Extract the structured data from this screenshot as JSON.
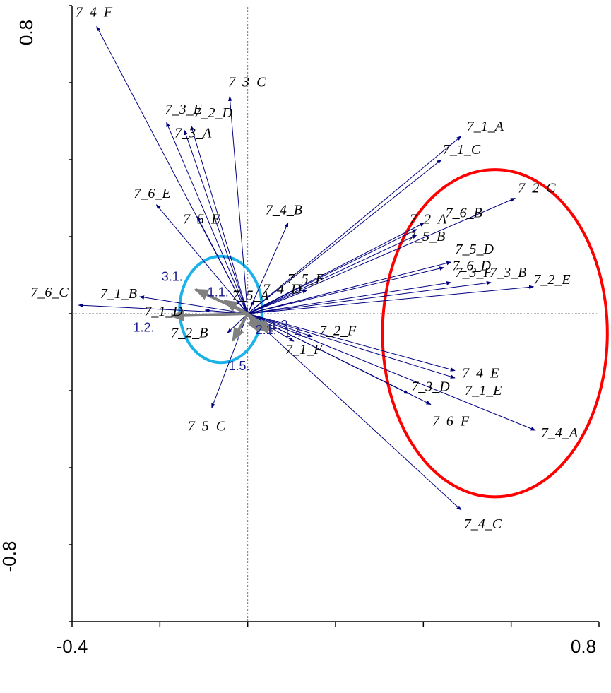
{
  "chart_data": {
    "type": "biplot",
    "title": "",
    "xlabel": "",
    "ylabel": "",
    "xlim": [
      -0.4,
      0.8
    ],
    "ylim": [
      -0.8,
      0.8
    ],
    "x_tick_labels": [
      "-0.4",
      "0.8"
    ],
    "y_tick_labels": [
      "0.8",
      "-0.8"
    ],
    "grid": false,
    "series": [
      {
        "color": "#000080",
        "vectors": [
          {
            "label": "7_4_F",
            "x": -0.344,
            "y": 0.746
          },
          {
            "label": "7_3_C",
            "x": -0.041,
            "y": 0.564
          },
          {
            "label": "7_3_E",
            "x": -0.185,
            "y": 0.497
          },
          {
            "label": "7_2_D",
            "x": -0.129,
            "y": 0.488
          },
          {
            "label": "7_3_A",
            "x": -0.144,
            "y": 0.476
          },
          {
            "label": "7_1_A",
            "x": 0.486,
            "y": 0.461
          },
          {
            "label": "7_1_C",
            "x": 0.441,
            "y": 0.4
          },
          {
            "label": "7_2_C",
            "x": 0.609,
            "y": 0.3
          },
          {
            "label": "7_6_E",
            "x": -0.208,
            "y": 0.283
          },
          {
            "label": "7_5_E",
            "x": -0.115,
            "y": 0.252
          },
          {
            "label": "7_4_B",
            "x": 0.092,
            "y": 0.236
          },
          {
            "label": "7_2_A",
            "x": 0.385,
            "y": 0.219
          },
          {
            "label": "7_6_B",
            "x": 0.402,
            "y": 0.236
          },
          {
            "label": "7_5_B",
            "x": 0.385,
            "y": 0.204
          },
          {
            "label": "7_5_D",
            "x": 0.463,
            "y": 0.134
          },
          {
            "label": "7_6_D",
            "x": 0.447,
            "y": 0.12
          },
          {
            "label": "7_5_A",
            "x": -0.026,
            "y": 0.036
          },
          {
            "label": "7_4_D",
            "x": 0.015,
            "y": 0.034
          },
          {
            "label": "7_5_F",
            "x": 0.135,
            "y": 0.061
          },
          {
            "label": "7_1_B",
            "x": -0.246,
            "y": 0.044
          },
          {
            "label": "7_1_D",
            "x": -0.097,
            "y": 0.009
          },
          {
            "label": "7_6_C",
            "x": -0.385,
            "y": 0.022
          },
          {
            "label": "7_3_F",
            "x": 0.463,
            "y": 0.081
          },
          {
            "label": "7_3_B",
            "x": 0.554,
            "y": 0.081
          },
          {
            "label": "7_2_E",
            "x": 0.651,
            "y": 0.07
          },
          {
            "label": "7_2_B",
            "x": -0.046,
            "y": -0.05
          },
          {
            "label": "7_2_F",
            "x": 0.147,
            "y": -0.06
          },
          {
            "label": "7_1_F",
            "x": 0.105,
            "y": -0.072
          },
          {
            "label": "7_5_C",
            "x": -0.082,
            "y": -0.245
          },
          {
            "label": "7_4_E",
            "x": 0.472,
            "y": -0.148
          },
          {
            "label": "7_1_E",
            "x": 0.472,
            "y": -0.167
          },
          {
            "label": "7_3_D",
            "x": 0.366,
            "y": -0.208
          },
          {
            "label": "7_6_F",
            "x": 0.417,
            "y": -0.236
          },
          {
            "label": "7_4_A",
            "x": 0.655,
            "y": -0.303
          },
          {
            "label": "7_4_C",
            "x": 0.486,
            "y": -0.51
          }
        ]
      },
      {
        "color": "#808080",
        "vectors": [
          {
            "label": "3.1.",
            "x": -0.119,
            "y": 0.063
          },
          {
            "label": "1.1.",
            "x": -0.053,
            "y": 0.034
          },
          {
            "label": "1.2.",
            "x": -0.174,
            "y": -0.006
          },
          {
            "label": "1.5.",
            "x": -0.034,
            "y": -0.07
          },
          {
            "label": "2.1.",
            "x": 0.024,
            "y": -0.046
          },
          {
            "label": "1.3.",
            "x": 0.045,
            "y": -0.048
          },
          {
            "label": "1.4.",
            "x": 0.056,
            "y": -0.046
          }
        ]
      }
    ],
    "annotations": [
      {
        "shape": "ellipse",
        "color": "#ff0000",
        "cx": 0.563,
        "cy": -0.051,
        "rx": 0.256,
        "ry": 0.425
      },
      {
        "shape": "ellipse",
        "color": "#1ab2e8",
        "cx": -0.061,
        "cy": 0.011,
        "rx": 0.094,
        "ry": 0.138
      }
    ]
  }
}
